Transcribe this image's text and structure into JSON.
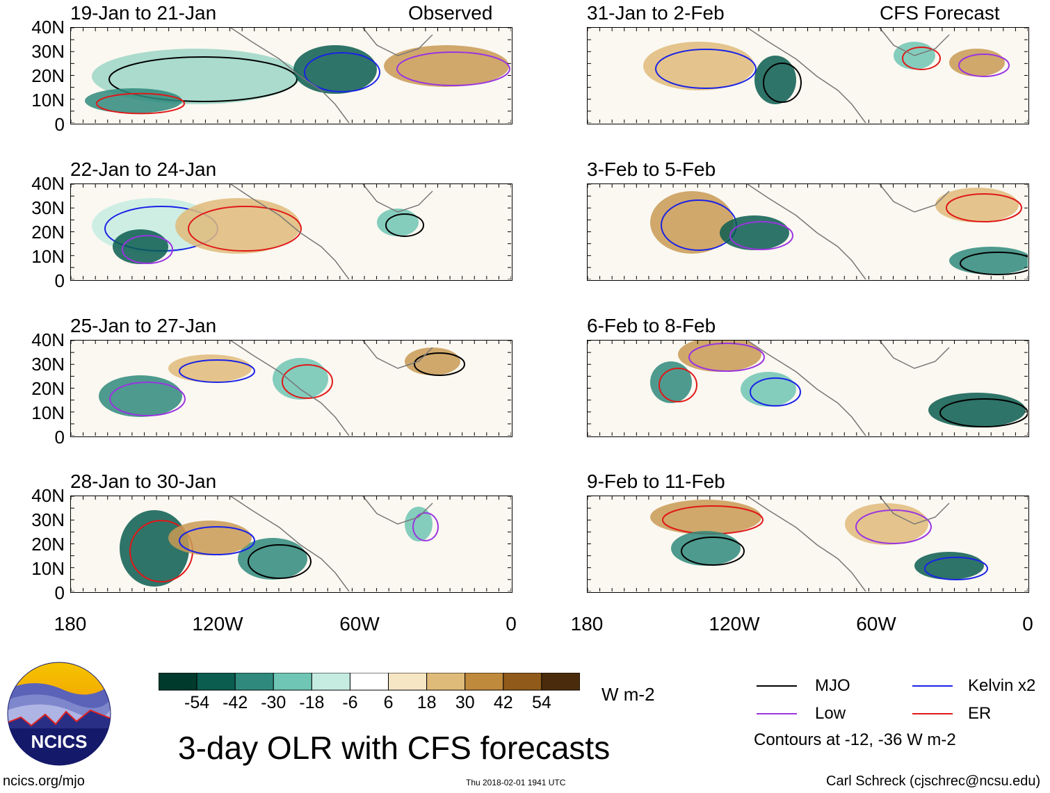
{
  "chart_data": {
    "type": "heatmap",
    "title": "3-day OLR with CFS forecasts",
    "units": "W m-2",
    "column_headers": {
      "left": "Observed",
      "right": "CFS Forecast"
    },
    "lat_ticks": [
      "40N",
      "30N",
      "20N",
      "10N",
      "0"
    ],
    "lon_ticks": [
      "180",
      "120W",
      "60W",
      "0"
    ],
    "lat_range": [
      0,
      40
    ],
    "lon_range": [
      -180,
      0
    ],
    "panels": [
      {
        "label": "19-Jan to 21-Jan",
        "kind": "Observed"
      },
      {
        "label": "22-Jan to 24-Jan",
        "kind": "Observed"
      },
      {
        "label": "25-Jan to 27-Jan",
        "kind": "Observed"
      },
      {
        "label": "28-Jan to 30-Jan",
        "kind": "Observed"
      },
      {
        "label": "31-Jan to 2-Feb",
        "kind": "CFS Forecast"
      },
      {
        "label": "3-Feb to 5-Feb",
        "kind": "CFS Forecast"
      },
      {
        "label": "6-Feb to 8-Feb",
        "kind": "CFS Forecast"
      },
      {
        "label": "9-Feb to 11-Feb",
        "kind": "CFS Forecast"
      }
    ],
    "colorbar": {
      "labels": [
        "-54",
        "-42",
        "-30",
        "-18",
        "-6",
        "6",
        "18",
        "30",
        "42",
        "54"
      ],
      "colors": [
        "#003a2c",
        "#0b5d50",
        "#2f8a7d",
        "#6fc6b4",
        "#c6ece2",
        "#ffffff",
        "#f6e6c4",
        "#dfbb7a",
        "#bf8a3c",
        "#8f5a1a",
        "#4a2c0c"
      ]
    },
    "legend": [
      {
        "label": "MJO",
        "color": "#000000"
      },
      {
        "label": "Kelvin x2",
        "color": "#1a22e6"
      },
      {
        "label": "Low",
        "color": "#9a34e0"
      },
      {
        "label": "ER",
        "color": "#e01818"
      }
    ],
    "contour_note": "Contours at -12, -36 W m-2"
  },
  "footer": {
    "logo_text": "NCICS",
    "url": "ncics.org/mjo",
    "timestamp": "Thu 2018-02-01 1941 UTC",
    "credit": "Carl Schreck (cjschrec@ncsu.edu)"
  }
}
